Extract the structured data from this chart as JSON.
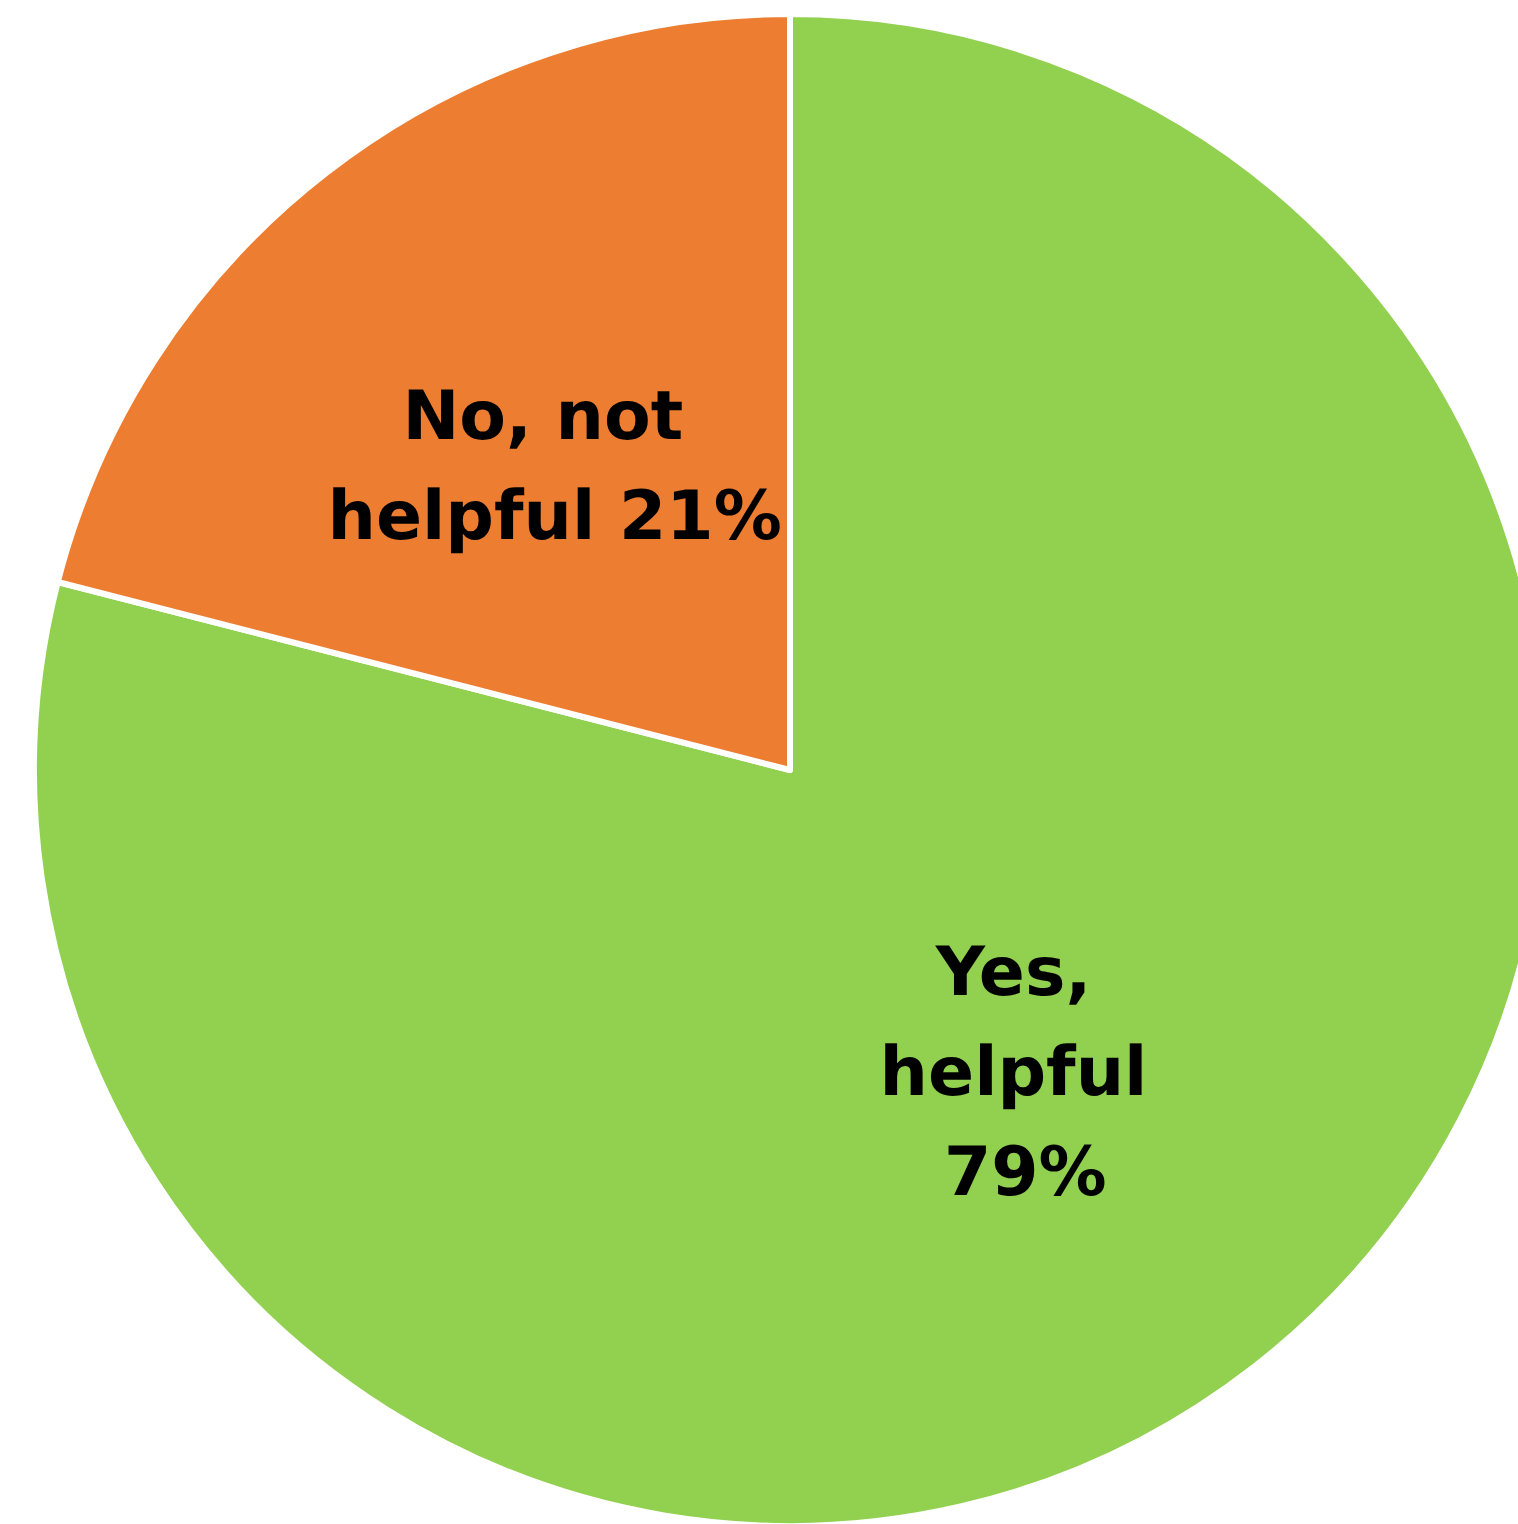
{
  "chart_data": {
    "type": "pie",
    "categories": [
      "Yes, helpful",
      "No, not helpful"
    ],
    "values": [
      79,
      21
    ],
    "value_labels": [
      "79%",
      "21%"
    ],
    "colors": [
      "#92d050",
      "#ed7d31"
    ],
    "legend": false
  }
}
